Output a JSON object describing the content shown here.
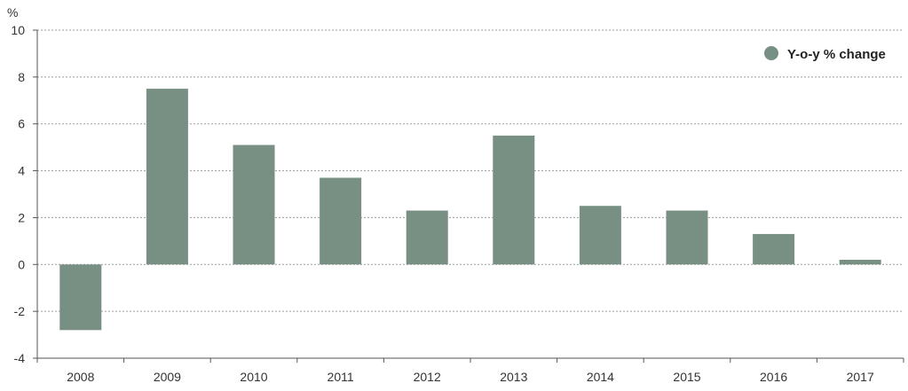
{
  "chart_data": {
    "type": "bar",
    "title": "",
    "xlabel": "",
    "ylabel": "",
    "y_unit": "%",
    "categories": [
      "2008",
      "2009",
      "2010",
      "2011",
      "2012",
      "2013",
      "2014",
      "2015",
      "2016",
      "2017"
    ],
    "series": [
      {
        "name": "Y-o-y % change",
        "color": "#788f84",
        "values": [
          -2.8,
          7.5,
          5.1,
          3.7,
          2.3,
          5.5,
          2.5,
          2.3,
          1.3,
          0.2
        ]
      }
    ],
    "ylim": [
      -4,
      10
    ],
    "yticks": [
      -4,
      -2,
      0,
      2,
      4,
      6,
      8,
      10
    ],
    "grid": true,
    "legend_position": "top-right"
  }
}
